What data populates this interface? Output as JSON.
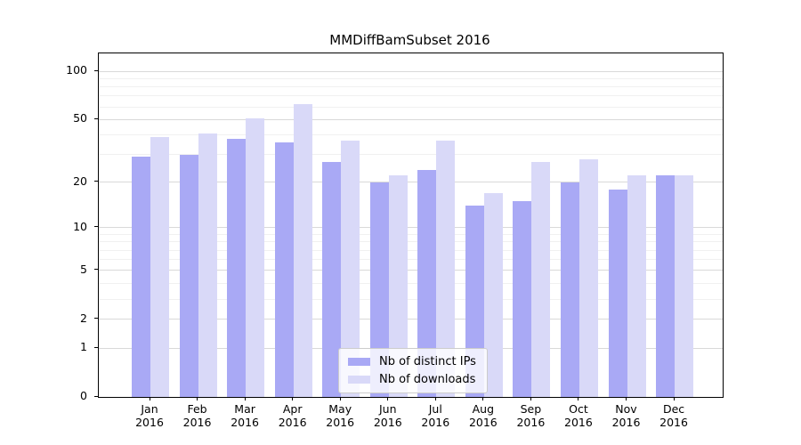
{
  "chart_data": {
    "type": "bar",
    "title": "MMDiffBamSubset 2016",
    "scale": "log1p",
    "categories": [
      {
        "month": "Jan",
        "year": "2016"
      },
      {
        "month": "Feb",
        "year": "2016"
      },
      {
        "month": "Mar",
        "year": "2016"
      },
      {
        "month": "Apr",
        "year": "2016"
      },
      {
        "month": "May",
        "year": "2016"
      },
      {
        "month": "Jun",
        "year": "2016"
      },
      {
        "month": "Jul",
        "year": "2016"
      },
      {
        "month": "Aug",
        "year": "2016"
      },
      {
        "month": "Sep",
        "year": "2016"
      },
      {
        "month": "Oct",
        "year": "2016"
      },
      {
        "month": "Nov",
        "year": "2016"
      },
      {
        "month": "Dec",
        "year": "2016"
      }
    ],
    "series": [
      {
        "name": "Nb of distinct IPs",
        "color": "#a9a9f5",
        "values": [
          29,
          30,
          38,
          36,
          27,
          20,
          24,
          14,
          15,
          20,
          18,
          22
        ]
      },
      {
        "name": "Nb of downloads",
        "color": "#d9d9f8",
        "values": [
          39,
          41,
          51,
          62,
          37,
          22,
          37,
          17,
          27,
          28,
          22,
          22
        ]
      }
    ],
    "y_ticks": [
      0,
      1,
      2,
      5,
      10,
      20,
      50,
      100
    ],
    "y_minor_ticks": [
      3,
      4,
      6,
      7,
      8,
      9,
      30,
      40,
      60,
      70,
      80,
      90
    ],
    "ylim": [
      0,
      129
    ],
    "xlabel": "",
    "ylabel": "",
    "grid": true,
    "grid_major_color": "#d9d9d9",
    "grid_minor_color": "#f0f0f0",
    "legend_position": "lower center",
    "legend_labels": [
      "Nb of distinct IPs",
      "Nb of downloads"
    ]
  }
}
